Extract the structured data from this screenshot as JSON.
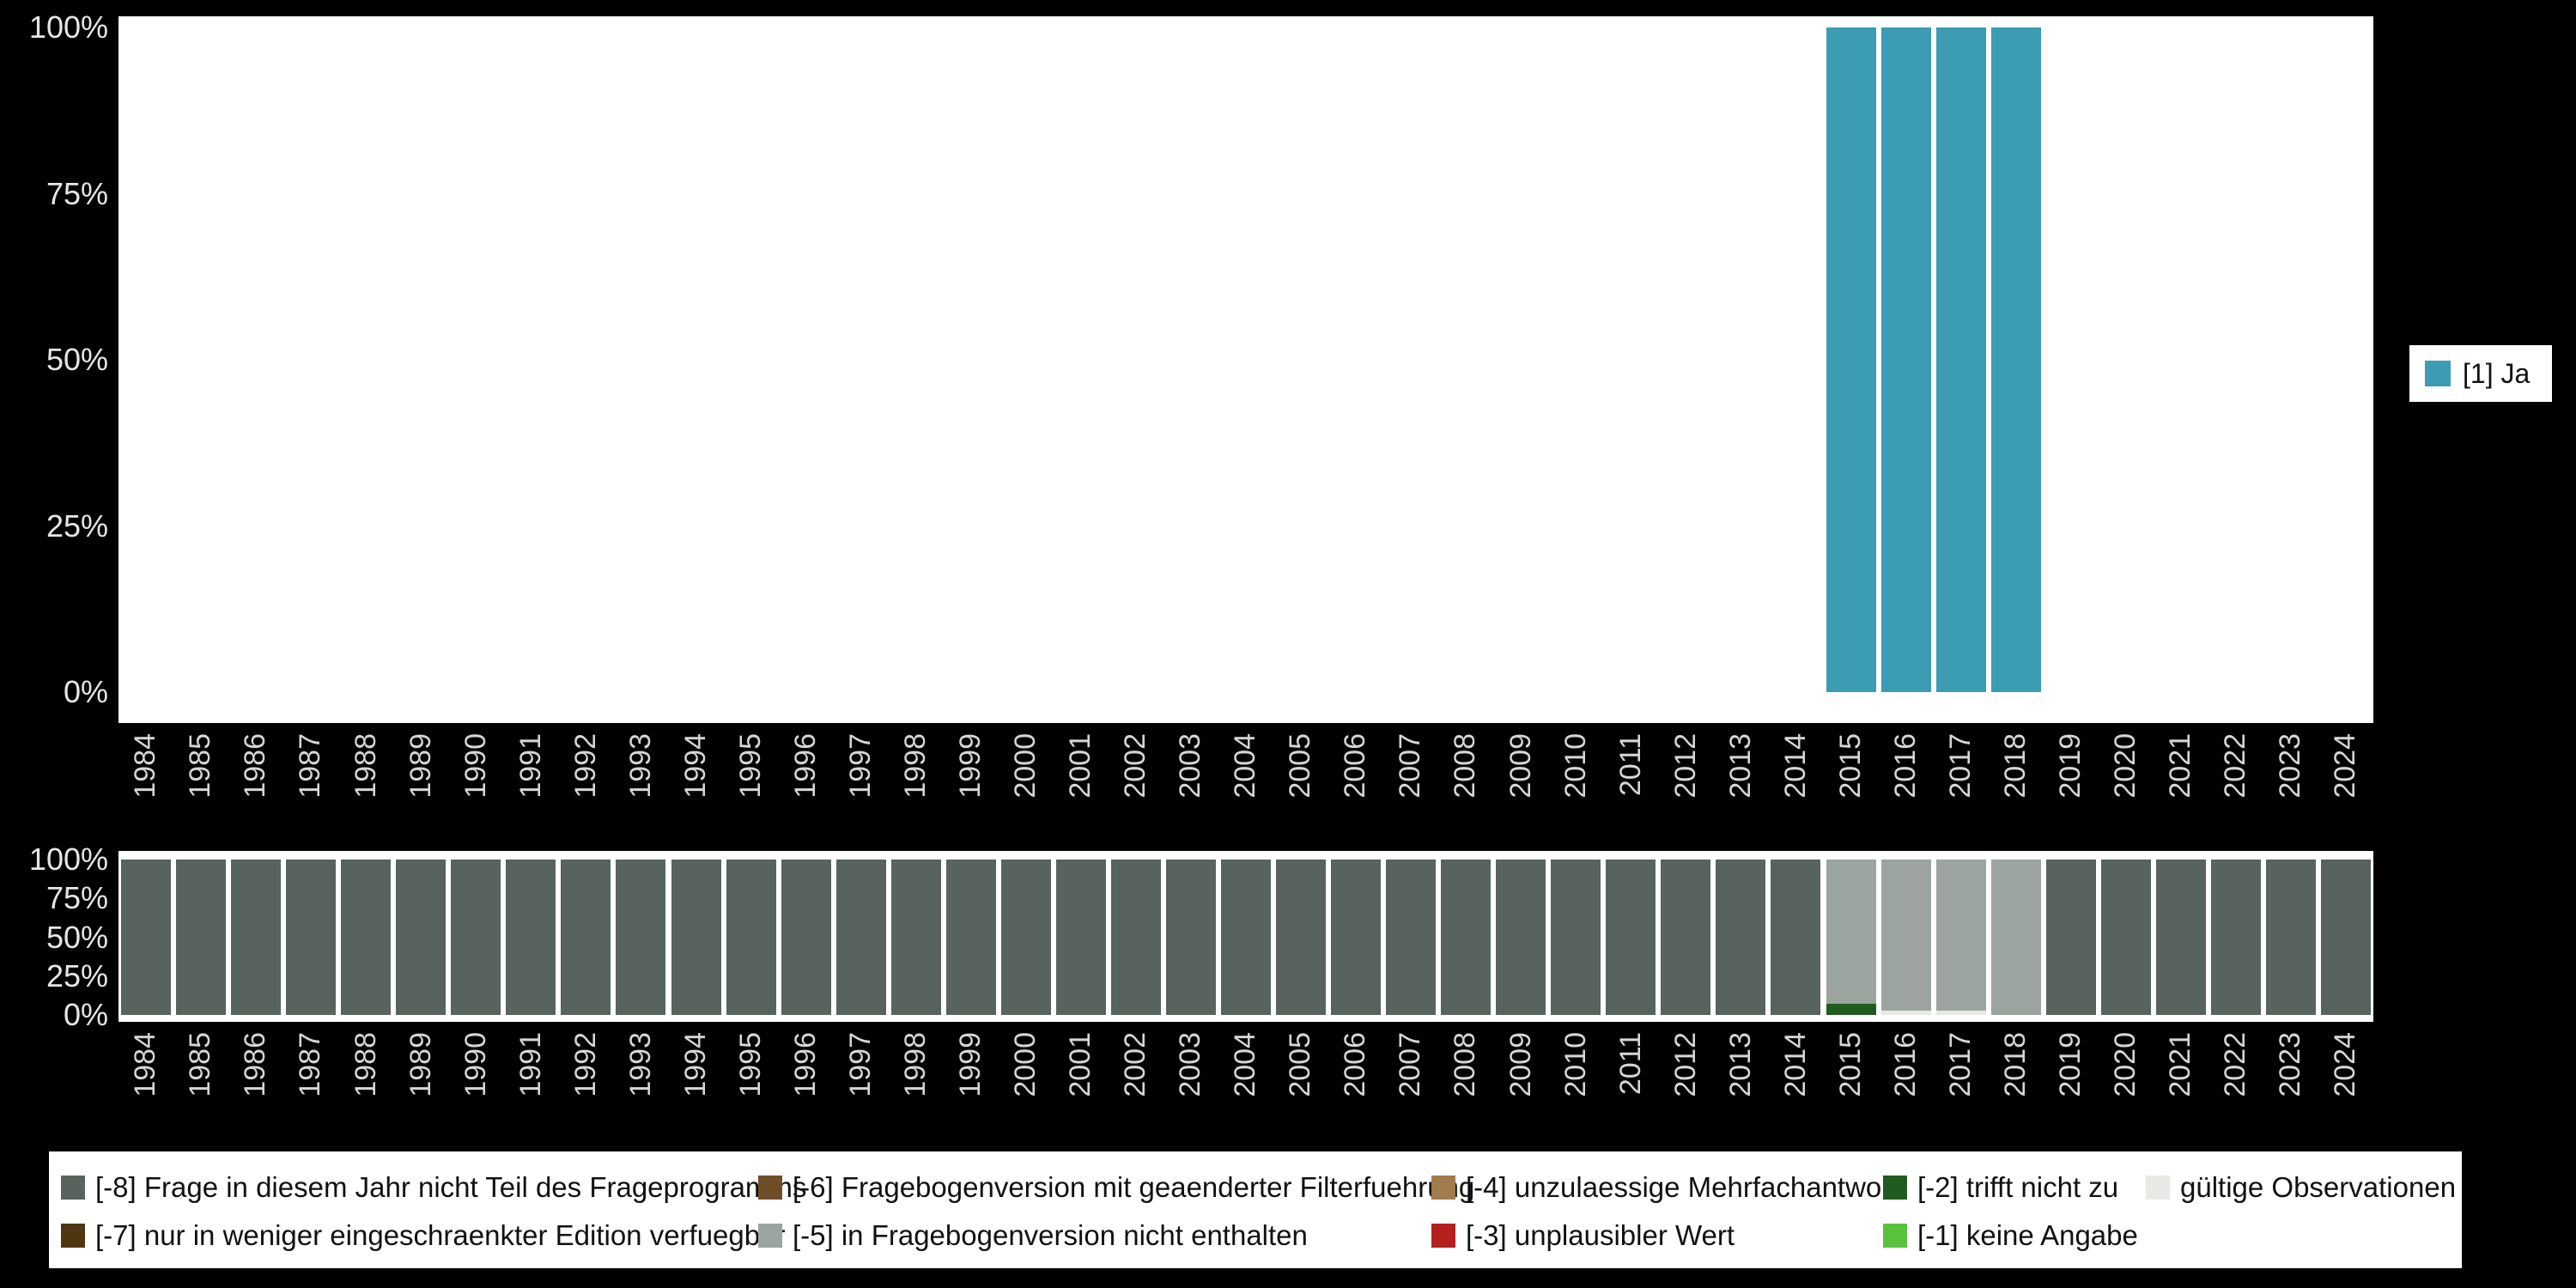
{
  "background": "#000000",
  "colors": {
    "1": "#3b9cb3",
    "-8": "#59635e",
    "-7": "#4f3511",
    "-6": "#6e4e28",
    "-5": "#9ba49e",
    "-4": "#a07b4e",
    "-3": "#b42020",
    "-2": "#205c20",
    "-1": "#58c23c",
    "valid": "#e7eae4"
  },
  "years": [
    "1984",
    "1985",
    "1986",
    "1987",
    "1988",
    "1989",
    "1990",
    "1991",
    "1992",
    "1993",
    "1994",
    "1995",
    "1996",
    "1997",
    "1998",
    "1999",
    "2000",
    "2001",
    "2002",
    "2003",
    "2004",
    "2005",
    "2006",
    "2007",
    "2008",
    "2009",
    "2010",
    "2011",
    "2012",
    "2013",
    "2014",
    "2015",
    "2016",
    "2017",
    "2018",
    "2019",
    "2020",
    "2021",
    "2022",
    "2023",
    "2024"
  ],
  "y_ticks": [
    {
      "value": 0,
      "label": "0%"
    },
    {
      "value": 25,
      "label": "25%"
    },
    {
      "value": 50,
      "label": "50%"
    },
    {
      "value": 75,
      "label": "75%"
    },
    {
      "value": 100,
      "label": "100%"
    }
  ],
  "legend_right": {
    "label": "[1] Ja",
    "code": "1"
  },
  "chart_data": [
    {
      "type": "bar",
      "title": "",
      "categories": [
        "1984",
        "1985",
        "1986",
        "1987",
        "1988",
        "1989",
        "1990",
        "1991",
        "1992",
        "1993",
        "1994",
        "1995",
        "1996",
        "1997",
        "1998",
        "1999",
        "2000",
        "2001",
        "2002",
        "2003",
        "2004",
        "2005",
        "2006",
        "2007",
        "2008",
        "2009",
        "2010",
        "2011",
        "2012",
        "2013",
        "2014",
        "2015",
        "2016",
        "2017",
        "2018",
        "2019",
        "2020",
        "2021",
        "2022",
        "2023",
        "2024"
      ],
      "series": [
        {
          "name": "[1] Ja",
          "color_code": "1",
          "values": [
            0,
            0,
            0,
            0,
            0,
            0,
            0,
            0,
            0,
            0,
            0,
            0,
            0,
            0,
            0,
            0,
            0,
            0,
            0,
            0,
            0,
            0,
            0,
            0,
            0,
            0,
            0,
            0,
            0,
            0,
            0,
            100,
            100,
            100,
            100,
            0,
            0,
            0,
            0,
            0,
            0
          ]
        }
      ],
      "ylim": [
        0,
        100
      ],
      "y_tick_labels": [
        "0%",
        "25%",
        "50%",
        "75%",
        "100%"
      ],
      "grid": false,
      "legend_position": "right"
    },
    {
      "type": "stacked-bar",
      "title": "",
      "categories": [
        "1984",
        "1985",
        "1986",
        "1987",
        "1988",
        "1989",
        "1990",
        "1991",
        "1992",
        "1993",
        "1994",
        "1995",
        "1996",
        "1997",
        "1998",
        "1999",
        "2000",
        "2001",
        "2002",
        "2003",
        "2004",
        "2005",
        "2006",
        "2007",
        "2008",
        "2009",
        "2010",
        "2011",
        "2012",
        "2013",
        "2014",
        "2015",
        "2016",
        "2017",
        "2018",
        "2019",
        "2020",
        "2021",
        "2022",
        "2023",
        "2024"
      ],
      "default_bar": [
        {
          "code": "-8",
          "pct": 100
        }
      ],
      "bars_by_year": {
        "2015": [
          {
            "code": "-2",
            "pct": 7
          },
          {
            "code": "-5",
            "pct": 93
          }
        ],
        "2016": [
          {
            "code": "valid",
            "pct": 3
          },
          {
            "code": "-5",
            "pct": 97
          }
        ],
        "2017": [
          {
            "code": "valid",
            "pct": 3
          },
          {
            "code": "-5",
            "pct": 97
          }
        ],
        "2018": [
          {
            "code": "-5",
            "pct": 100
          }
        ]
      },
      "ylim": [
        0,
        100
      ],
      "y_tick_labels": [
        "0%",
        "25%",
        "50%",
        "75%",
        "100%"
      ],
      "grid": false,
      "legend_position": "bottom"
    }
  ],
  "legend_bottom": {
    "rows": [
      [
        {
          "code": "-8",
          "label": "[-8] Frage in diesem Jahr nicht Teil des Frageprogramms"
        },
        {
          "code": "-6",
          "label": "[-6] Fragebogenversion mit geaenderter Filterfuehrung"
        },
        {
          "code": "-4",
          "label": "[-4] unzulaessige Mehrfachantwort"
        },
        {
          "code": "-2",
          "label": "[-2] trifft nicht zu"
        },
        {
          "code": "valid",
          "label": "gültige Observationen"
        }
      ],
      [
        {
          "code": "-7",
          "label": "[-7] nur in weniger eingeschraenkter Edition verfuegbar"
        },
        {
          "code": "-5",
          "label": "[-5] in Fragebogenversion nicht enthalten"
        },
        {
          "code": "-3",
          "label": "[-3] unplausibler Wert"
        },
        {
          "code": "-1",
          "label": "[-1] keine Angabe"
        }
      ]
    ]
  }
}
